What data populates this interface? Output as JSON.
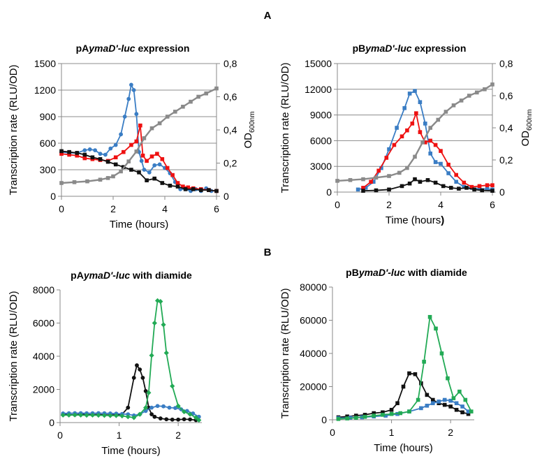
{
  "panel_labels": [
    "A",
    "B"
  ],
  "chart_data": [
    {
      "type": "line",
      "title_parts": [
        "pA",
        "ymaD'-luc",
        " expression"
      ],
      "xlabel": "Time (hours)",
      "ylabel": "Transcription rate (RLU/OD)",
      "y2label": "OD",
      "y2label_sub": "600nm",
      "xlim": [
        0,
        6
      ],
      "ylim": [
        0,
        1500
      ],
      "y2lim": [
        0,
        0.8
      ],
      "xticks": [
        "0",
        "2",
        "4",
        "6"
      ],
      "yticks": [
        "0",
        "300",
        "600",
        "900",
        "1200",
        "1500"
      ],
      "y2ticks": [
        "0",
        "0,2",
        "0,4",
        "0,6",
        "0,8"
      ],
      "grid": "horizontal",
      "legend": "none",
      "series": [
        {
          "color": "#3a7dc4",
          "marker": "circle",
          "axis": "left",
          "x": [
            0,
            0.3,
            0.6,
            0.9,
            1.1,
            1.3,
            1.5,
            1.7,
            1.9,
            2.1,
            2.3,
            2.45,
            2.6,
            2.7,
            2.8,
            2.9,
            3.0,
            3.1,
            3.2,
            3.4,
            3.6,
            3.8,
            4.0,
            4.2,
            4.4,
            4.6,
            4.8,
            5.0,
            5.2,
            5.4,
            5.6,
            5.8,
            6.0
          ],
          "y": [
            500,
            490,
            490,
            520,
            530,
            520,
            480,
            470,
            540,
            580,
            700,
            900,
            1100,
            1260,
            1200,
            930,
            500,
            400,
            300,
            270,
            350,
            360,
            320,
            260,
            160,
            80,
            80,
            60,
            80,
            60,
            90,
            60,
            60
          ]
        },
        {
          "color": "#ee1111",
          "marker": "square",
          "axis": "left",
          "x": [
            0,
            0.3,
            0.6,
            0.9,
            1.2,
            1.5,
            1.8,
            2.1,
            2.4,
            2.7,
            2.9,
            3.05,
            3.15,
            3.3,
            3.5,
            3.7,
            3.9,
            4.1,
            4.3,
            4.5,
            4.7,
            4.9,
            5.1,
            5.4,
            5.7,
            6.0
          ],
          "y": [
            480,
            470,
            460,
            430,
            420,
            410,
            400,
            440,
            500,
            580,
            620,
            800,
            460,
            400,
            450,
            480,
            420,
            320,
            240,
            150,
            110,
            100,
            90,
            80,
            70,
            60
          ]
        },
        {
          "color": "#111111",
          "marker": "square",
          "axis": "left",
          "x": [
            0,
            0.3,
            0.6,
            0.9,
            1.2,
            1.5,
            1.8,
            2.1,
            2.4,
            2.7,
            3.0,
            3.3,
            3.6,
            3.9,
            4.2,
            4.5,
            4.8,
            5.1,
            5.4,
            5.7,
            6.0
          ],
          "y": [
            510,
            500,
            490,
            470,
            440,
            420,
            390,
            360,
            330,
            300,
            270,
            180,
            200,
            150,
            120,
            110,
            80,
            80,
            70,
            70,
            60
          ]
        },
        {
          "color": "#8a8a8a",
          "marker": "square",
          "axis": "right",
          "x": [
            0,
            0.5,
            1.0,
            1.5,
            1.8,
            2.0,
            2.3,
            2.6,
            2.9,
            3.2,
            3.5,
            3.8,
            4.1,
            4.4,
            4.7,
            5.0,
            5.3,
            5.6,
            6.0
          ],
          "y": [
            0.08,
            0.085,
            0.09,
            0.1,
            0.11,
            0.12,
            0.15,
            0.21,
            0.27,
            0.35,
            0.41,
            0.44,
            0.48,
            0.51,
            0.54,
            0.57,
            0.6,
            0.62,
            0.65
          ]
        }
      ]
    },
    {
      "type": "line",
      "title_parts": [
        "pB",
        "ymaD'-luc",
        " expression"
      ],
      "xlabel": "Time (hours",
      "xlabel_bold_suffix": ")",
      "ylabel": "Transcription rate (RLU/OD)",
      "y2label": "OD",
      "y2label_sub": "600nm",
      "xlim": [
        0,
        6
      ],
      "ylim": [
        0,
        15000
      ],
      "y2lim": [
        0,
        0.8
      ],
      "xticks": [
        "0",
        "2",
        "4",
        "6"
      ],
      "yticks": [
        "0",
        "3000",
        "6000",
        "9000",
        "12000",
        "15000"
      ],
      "y2ticks": [
        "0",
        "0,2",
        "0,4",
        "0,6",
        "0,8"
      ],
      "grid": "horizontal",
      "legend": "none",
      "series": [
        {
          "color": "#3a7dc4",
          "marker": "square",
          "axis": "left",
          "x": [
            0.8,
            1.1,
            1.4,
            1.7,
            2.0,
            2.3,
            2.6,
            2.8,
            3.0,
            3.2,
            3.4,
            3.6,
            3.8,
            4.0,
            4.3,
            4.6,
            4.9,
            5.2,
            5.5,
            5.8,
            6.0
          ],
          "y": [
            300,
            500,
            1200,
            2800,
            5000,
            7500,
            9800,
            11500,
            11800,
            10500,
            8000,
            4500,
            3500,
            3300,
            2200,
            1200,
            600,
            500,
            400,
            350,
            300
          ]
        },
        {
          "color": "#ee1111",
          "marker": "square",
          "axis": "left",
          "x": [
            1.0,
            1.3,
            1.6,
            1.9,
            2.2,
            2.5,
            2.7,
            2.9,
            3.05,
            3.2,
            3.4,
            3.6,
            3.8,
            4.0,
            4.3,
            4.6,
            4.9,
            5.2,
            5.5,
            5.8,
            6.0
          ],
          "y": [
            500,
            1200,
            2500,
            4000,
            5500,
            6500,
            7200,
            8000,
            9200,
            7000,
            5800,
            6000,
            5500,
            4800,
            3200,
            2000,
            1100,
            600,
            700,
            800,
            800
          ]
        },
        {
          "color": "#111111",
          "marker": "square",
          "axis": "left",
          "x": [
            1.0,
            1.5,
            2.0,
            2.5,
            2.8,
            3.0,
            3.2,
            3.5,
            3.8,
            4.1,
            4.4,
            4.7,
            5.0,
            5.3,
            5.6,
            6.0
          ],
          "y": [
            150,
            200,
            300,
            700,
            1000,
            1500,
            1200,
            1400,
            1100,
            700,
            500,
            400,
            500,
            300,
            200,
            150
          ]
        },
        {
          "color": "#8a8a8a",
          "marker": "square",
          "axis": "right",
          "x": [
            0,
            0.5,
            1.0,
            1.5,
            2.0,
            2.4,
            2.7,
            3.0,
            3.3,
            3.6,
            3.9,
            4.2,
            4.5,
            4.8,
            5.1,
            5.4,
            5.7,
            6.0
          ],
          "y": [
            0.07,
            0.075,
            0.08,
            0.09,
            0.1,
            0.12,
            0.15,
            0.22,
            0.31,
            0.4,
            0.45,
            0.5,
            0.54,
            0.57,
            0.6,
            0.62,
            0.64,
            0.67
          ]
        }
      ]
    },
    {
      "type": "line",
      "title_parts": [
        "pA",
        "ymaD'-luc",
        " with diamide"
      ],
      "xlabel": "Time (hours)",
      "ylabel": "Transcription rate (RLU/OD)",
      "xlim": [
        0,
        2.4
      ],
      "ylim": [
        0,
        8000
      ],
      "xticks": [
        "0",
        "1",
        "2"
      ],
      "yticks": [
        "0",
        "2000",
        "4000",
        "6000",
        "8000"
      ],
      "grid": "none",
      "legend": "none",
      "series": [
        {
          "color": "#111111",
          "marker": "circle",
          "x": [
            0.05,
            0.15,
            0.25,
            0.35,
            0.45,
            0.55,
            0.65,
            0.75,
            0.85,
            0.95,
            1.05,
            1.15,
            1.25,
            1.3,
            1.35,
            1.4,
            1.45,
            1.5,
            1.55,
            1.6,
            1.7,
            1.8,
            1.9,
            2.0,
            2.1,
            2.2,
            2.3
          ],
          "y": [
            500,
            480,
            470,
            500,
            480,
            470,
            490,
            460,
            450,
            470,
            500,
            900,
            2700,
            3450,
            3200,
            2700,
            1900,
            900,
            500,
            350,
            250,
            200,
            180,
            180,
            200,
            190,
            150
          ]
        },
        {
          "color": "#3a7dc4",
          "marker": "circle",
          "x": [
            0.05,
            0.15,
            0.25,
            0.35,
            0.45,
            0.55,
            0.65,
            0.75,
            0.85,
            0.95,
            1.05,
            1.15,
            1.25,
            1.35,
            1.45,
            1.55,
            1.65,
            1.75,
            1.85,
            1.95,
            2.05,
            2.15,
            2.25,
            2.35
          ],
          "y": [
            550,
            560,
            570,
            570,
            560,
            560,
            570,
            560,
            550,
            540,
            520,
            500,
            430,
            500,
            700,
            900,
            1000,
            980,
            900,
            880,
            800,
            700,
            550,
            350
          ]
        },
        {
          "color": "#22aa55",
          "marker": "diamond",
          "x": [
            0.05,
            0.15,
            0.25,
            0.35,
            0.45,
            0.55,
            0.65,
            0.75,
            0.85,
            0.95,
            1.05,
            1.15,
            1.25,
            1.35,
            1.45,
            1.5,
            1.55,
            1.6,
            1.65,
            1.7,
            1.75,
            1.8,
            1.9,
            2.0,
            2.1,
            2.2,
            2.3,
            2.35
          ],
          "y": [
            450,
            450,
            460,
            450,
            440,
            450,
            440,
            430,
            420,
            420,
            400,
            350,
            300,
            500,
            900,
            1800,
            4050,
            6000,
            7350,
            7300,
            5900,
            4200,
            2200,
            1000,
            650,
            500,
            300,
            150
          ]
        }
      ]
    },
    {
      "type": "line",
      "title_parts": [
        "pB",
        "ymaD'-luc",
        " with diamide"
      ],
      "xlabel": "Time (hours)",
      "ylabel": "Transcription rate (RLU/OD)",
      "xlim": [
        0,
        2.4
      ],
      "ylim": [
        0,
        80000
      ],
      "xticks": [
        "0",
        "1",
        "2"
      ],
      "yticks": [
        "0",
        "20000",
        "40000",
        "60000",
        "80000"
      ],
      "grid": "none",
      "legend": "none",
      "series": [
        {
          "color": "#111111",
          "marker": "square",
          "x": [
            0.1,
            0.25,
            0.4,
            0.55,
            0.7,
            0.85,
            1.0,
            1.1,
            1.2,
            1.3,
            1.4,
            1.5,
            1.6,
            1.7,
            1.8,
            1.9,
            2.0,
            2.1,
            2.2,
            2.3
          ],
          "y": [
            1500,
            2000,
            2500,
            3000,
            4000,
            4500,
            6000,
            10000,
            20000,
            28000,
            27500,
            22000,
            15000,
            12000,
            10000,
            9000,
            8000,
            6000,
            4500,
            3500
          ]
        },
        {
          "color": "#3a7dc4",
          "marker": "square",
          "x": [
            0.1,
            0.3,
            0.5,
            0.7,
            0.9,
            1.1,
            1.3,
            1.5,
            1.6,
            1.7,
            1.8,
            1.9,
            2.0,
            2.1,
            2.2,
            2.3
          ],
          "y": [
            1000,
            1200,
            1500,
            2000,
            2500,
            3500,
            5000,
            7000,
            8500,
            10000,
            11000,
            12000,
            11500,
            10000,
            8000,
            5000
          ]
        },
        {
          "color": "#22aa55",
          "marker": "square",
          "x": [
            0.1,
            0.25,
            0.4,
            0.55,
            0.7,
            0.85,
            1.0,
            1.15,
            1.3,
            1.45,
            1.55,
            1.65,
            1.75,
            1.85,
            1.95,
            2.05,
            2.15,
            2.25,
            2.35
          ],
          "y": [
            500,
            800,
            1200,
            1800,
            2500,
            3000,
            3500,
            4000,
            5000,
            12000,
            35000,
            62000,
            55000,
            40000,
            25000,
            13000,
            17000,
            12000,
            5000
          ]
        }
      ]
    }
  ]
}
